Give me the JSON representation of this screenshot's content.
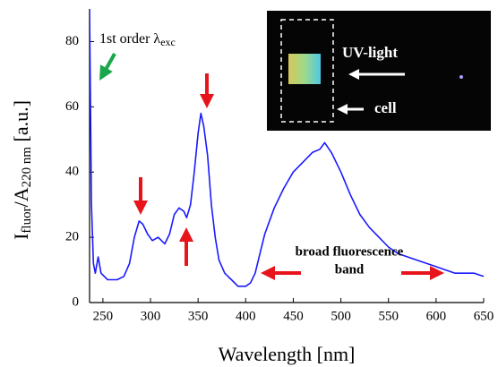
{
  "chart_data": {
    "type": "line",
    "y_label": [
      "I",
      "fluor",
      "/A",
      "220 nm",
      " [a.u.]"
    ],
    "x_label": "Wavelength [nm]",
    "annotations": {
      "excitation": [
        "1st order λ",
        "exc"
      ],
      "band": [
        "broad fluorescence",
        "band"
      ],
      "uv_light": "UV-light",
      "cell": "cell"
    },
    "x": [
      236,
      238,
      240,
      242,
      245,
      248,
      255,
      265,
      272,
      278,
      283,
      288,
      292,
      297,
      302,
      308,
      315,
      320,
      325,
      330,
      335,
      338,
      342,
      346,
      350,
      353,
      356,
      360,
      364,
      368,
      372,
      378,
      385,
      392,
      400,
      405,
      410,
      415,
      420,
      430,
      440,
      450,
      460,
      470,
      478,
      483,
      490,
      500,
      510,
      520,
      530,
      540,
      550,
      560,
      570,
      580,
      590,
      600,
      610,
      620,
      630,
      640,
      650
    ],
    "values": [
      90,
      30,
      12,
      9,
      14,
      9,
      7,
      7,
      8,
      12,
      20,
      25,
      24,
      21,
      19,
      20,
      18,
      21,
      27,
      29,
      28,
      26,
      30,
      40,
      52,
      58,
      54,
      45,
      30,
      20,
      13,
      9,
      7,
      5,
      5,
      6,
      9,
      15,
      21,
      29,
      35,
      40,
      43,
      46,
      47,
      49,
      46,
      40,
      33,
      27,
      23,
      20,
      17,
      15,
      14,
      13,
      12,
      11,
      10,
      9,
      9,
      9,
      8
    ],
    "color": "#1a1aff",
    "xlim": [
      236,
      650
    ],
    "xticks": [
      250,
      300,
      350,
      400,
      450,
      500,
      550,
      600,
      650
    ],
    "ylim": [
      0,
      90
    ],
    "yticks": [
      0,
      20,
      40,
      60,
      80
    ]
  }
}
